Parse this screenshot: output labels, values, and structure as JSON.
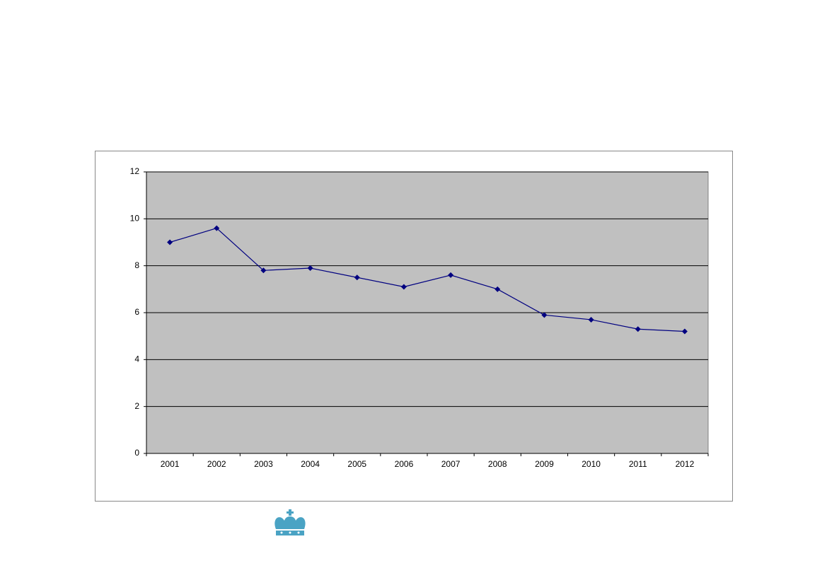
{
  "chart_data": {
    "type": "line",
    "categories": [
      "2001",
      "2002",
      "2003",
      "2004",
      "2005",
      "2006",
      "2007",
      "2008",
      "2009",
      "2010",
      "2011",
      "2012"
    ],
    "series": [
      {
        "color": "#000080",
        "values": [
          9.0,
          9.6,
          7.8,
          7.9,
          7.5,
          7.1,
          7.6,
          7.0,
          5.9,
          5.7,
          5.3,
          5.2
        ]
      }
    ],
    "ylim": [
      0,
      12
    ],
    "yticks": [
      0,
      2,
      4,
      6,
      8,
      10,
      12
    ],
    "grid": true,
    "plot_background": "#c0c0c0"
  }
}
